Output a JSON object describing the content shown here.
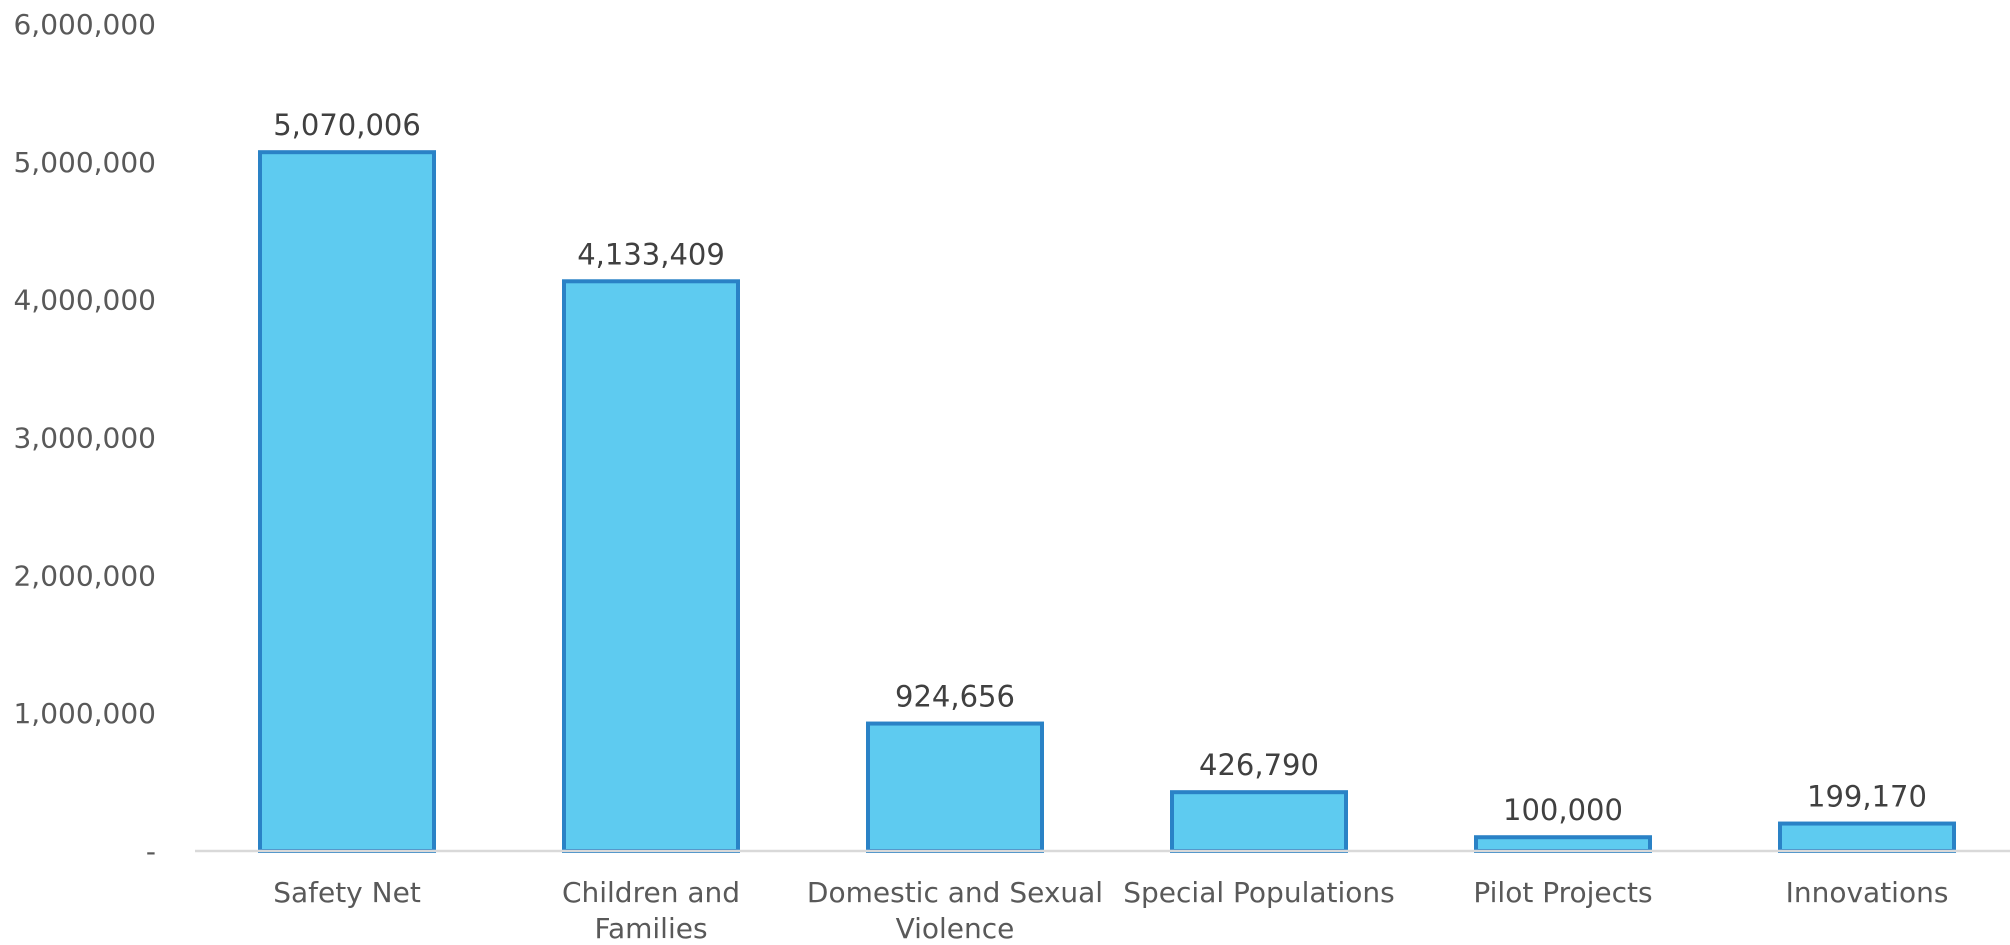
{
  "chart_data": {
    "type": "bar",
    "categories": [
      "Safety Net",
      "Children and Families",
      "Domestic and Sexual Violence",
      "Special Populations",
      "Pilot Projects",
      "Innovations"
    ],
    "values": [
      5070006,
      4133409,
      924656,
      426790,
      100000,
      199170
    ],
    "data_labels": [
      "5,070,006",
      "4,133,409",
      "924,656",
      "426,790",
      "100,000",
      "199,170"
    ],
    "y_ticks": [
      {
        "value": 0,
        "label": "-"
      },
      {
        "value": 1000000,
        "label": "1,000,000"
      },
      {
        "value": 2000000,
        "label": "2,000,000"
      },
      {
        "value": 3000000,
        "label": "3,000,000"
      },
      {
        "value": 4000000,
        "label": "4,000,000"
      },
      {
        "value": 5000000,
        "label": "5,000,000"
      },
      {
        "value": 6000000,
        "label": "6,000,000"
      }
    ],
    "ylim": [
      0,
      6000000
    ],
    "grid": false,
    "legend": "none",
    "bar_fill": "#5ecbf0",
    "bar_edge": "#2a82c6"
  }
}
